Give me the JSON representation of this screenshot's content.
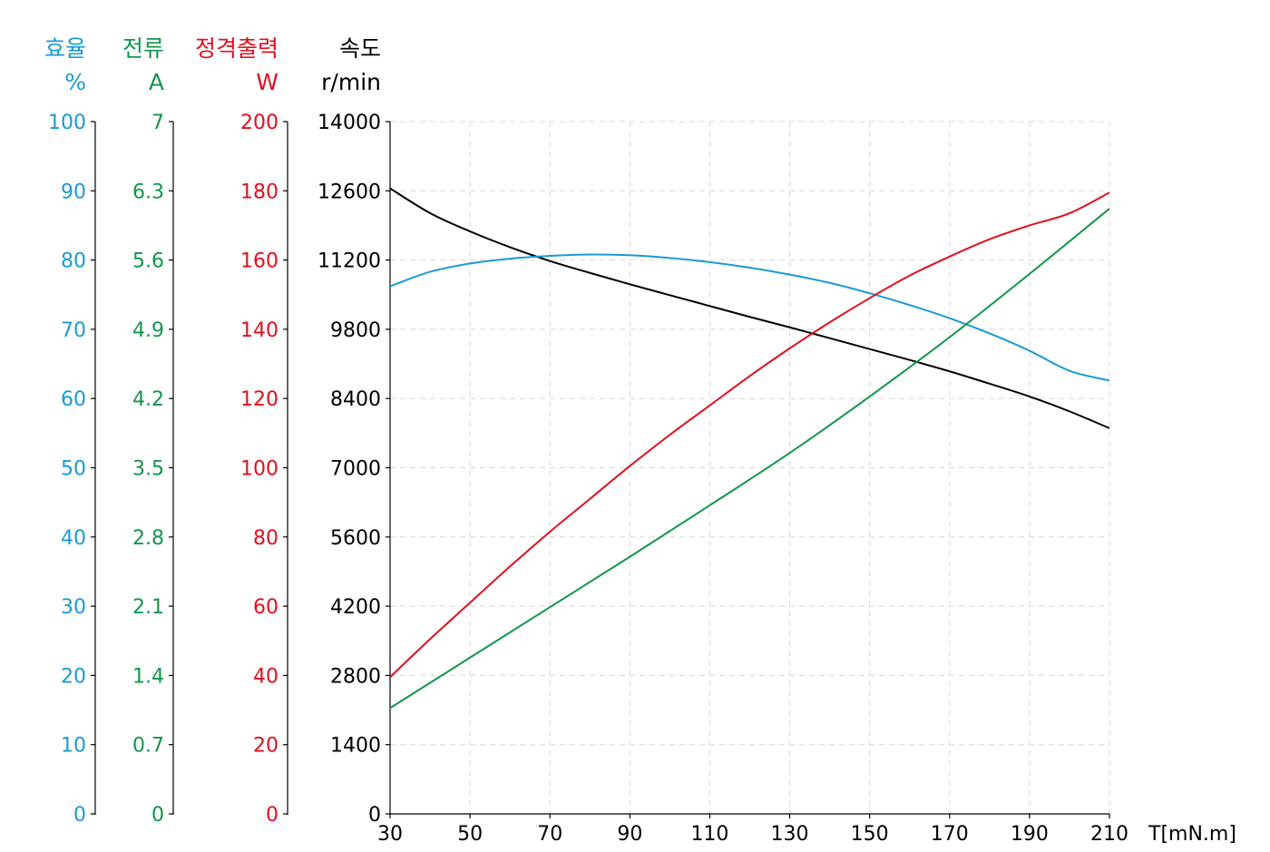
{
  "chart_data": {
    "type": "line",
    "xlabel": "T[mN.m]",
    "x_ticks": [
      "30",
      "50",
      "70",
      "90",
      "110",
      "130",
      "150",
      "170",
      "190",
      "210"
    ],
    "xlim": [
      30,
      210
    ],
    "axes": [
      {
        "key": "efficiency",
        "title": "효율",
        "unit": "%",
        "color": "#1a9ad6",
        "ylim": [
          0,
          100
        ],
        "ticks": [
          "0",
          "10",
          "20",
          "30",
          "40",
          "50",
          "60",
          "70",
          "80",
          "90",
          "100"
        ]
      },
      {
        "key": "current",
        "title": "전류",
        "unit": "A",
        "color": "#12964a",
        "ylim": [
          0,
          7
        ],
        "ticks": [
          "0",
          "0.7",
          "1.4",
          "2.1",
          "2.8",
          "3.5",
          "4.2",
          "4.9",
          "5.6",
          "6.3",
          "7"
        ]
      },
      {
        "key": "power",
        "title": "정격출력",
        "unit": "W",
        "color": "#e0101e",
        "ylim": [
          0,
          200
        ],
        "ticks": [
          "0",
          "20",
          "40",
          "60",
          "80",
          "100",
          "120",
          "140",
          "160",
          "180",
          "200"
        ]
      },
      {
        "key": "speed",
        "title": "속도",
        "unit": "r/min",
        "color": "#000000",
        "ylim": [
          0,
          14000
        ],
        "ticks": [
          "0",
          "1400",
          "2800",
          "4200",
          "5600",
          "7000",
          "8400",
          "9800",
          "11200",
          "12600",
          "14000"
        ]
      }
    ],
    "series": [
      {
        "axis": "speed",
        "color": "#000000",
        "x": [
          30,
          40,
          50,
          60,
          70,
          80,
          90,
          100,
          110,
          120,
          130,
          140,
          150,
          160,
          170,
          180,
          190,
          200,
          210
        ],
        "y": [
          12650,
          12150,
          11780,
          11460,
          11180,
          10940,
          10710,
          10490,
          10270,
          10050,
          9840,
          9620,
          9400,
          9180,
          8950,
          8700,
          8440,
          8140,
          7800
        ]
      },
      {
        "axis": "efficiency",
        "color": "#1a9ad6",
        "x": [
          30,
          40,
          50,
          60,
          70,
          80,
          90,
          100,
          110,
          120,
          130,
          140,
          150,
          160,
          170,
          180,
          190,
          200,
          210
        ],
        "y": [
          76.2,
          78.3,
          79.5,
          80.2,
          80.6,
          80.8,
          80.7,
          80.3,
          79.7,
          78.9,
          77.9,
          76.7,
          75.2,
          73.5,
          71.6,
          69.4,
          66.9,
          64.0,
          62.6
        ]
      },
      {
        "axis": "power",
        "color": "#e0101e",
        "x": [
          30,
          40,
          50,
          60,
          70,
          80,
          90,
          100,
          110,
          120,
          130,
          140,
          150,
          160,
          170,
          180,
          190,
          200,
          210
        ],
        "y": [
          39.5,
          50.5,
          61.0,
          71.5,
          81.5,
          91.0,
          100.5,
          109.5,
          118.0,
          126.5,
          134.5,
          142.0,
          149.0,
          155.5,
          161.0,
          166.0,
          170.0,
          173.5,
          179.5
        ]
      },
      {
        "axis": "current",
        "color": "#12964a",
        "x": [
          30,
          50,
          70,
          90,
          110,
          130,
          150,
          170,
          190,
          210
        ],
        "y": [
          1.07,
          1.58,
          2.09,
          2.6,
          3.12,
          3.65,
          4.22,
          4.82,
          5.46,
          6.12
        ]
      }
    ]
  }
}
